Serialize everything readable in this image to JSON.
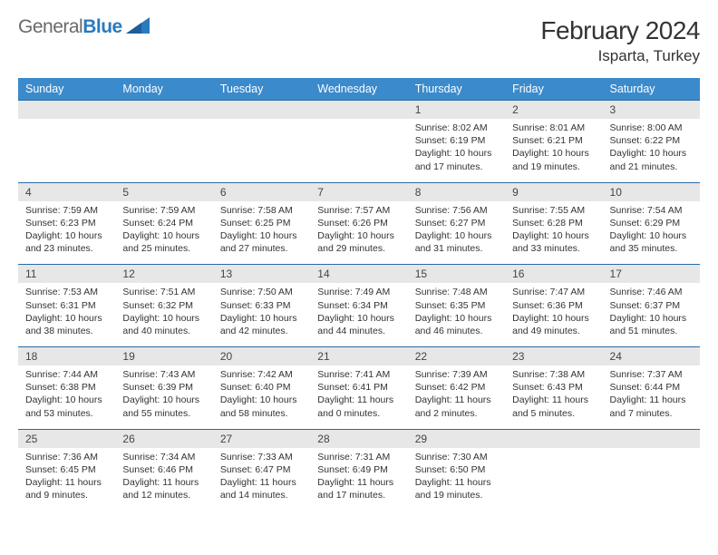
{
  "brand": {
    "part1": "General",
    "part2": "Blue"
  },
  "title": "February 2024",
  "location": "Isparta, Turkey",
  "colors": {
    "header_bg": "#3b8acb",
    "header_text": "#ffffff",
    "daynum_bg": "#e7e7e7",
    "row_border": "#2a6aa3",
    "body_text": "#333333",
    "logo_gray": "#6a6a6a",
    "logo_blue": "#2a7ac0",
    "page_bg": "#ffffff"
  },
  "typography": {
    "month_title_fontsize": 28,
    "location_fontsize": 17,
    "weekday_fontsize": 12.5,
    "daynum_fontsize": 12,
    "body_fontsize": 10.5
  },
  "weekdays": [
    "Sunday",
    "Monday",
    "Tuesday",
    "Wednesday",
    "Thursday",
    "Friday",
    "Saturday"
  ],
  "weeks": [
    [
      null,
      null,
      null,
      null,
      {
        "num": "1",
        "sunrise": "Sunrise: 8:02 AM",
        "sunset": "Sunset: 6:19 PM",
        "daylight": "Daylight: 10 hours and 17 minutes."
      },
      {
        "num": "2",
        "sunrise": "Sunrise: 8:01 AM",
        "sunset": "Sunset: 6:21 PM",
        "daylight": "Daylight: 10 hours and 19 minutes."
      },
      {
        "num": "3",
        "sunrise": "Sunrise: 8:00 AM",
        "sunset": "Sunset: 6:22 PM",
        "daylight": "Daylight: 10 hours and 21 minutes."
      }
    ],
    [
      {
        "num": "4",
        "sunrise": "Sunrise: 7:59 AM",
        "sunset": "Sunset: 6:23 PM",
        "daylight": "Daylight: 10 hours and 23 minutes."
      },
      {
        "num": "5",
        "sunrise": "Sunrise: 7:59 AM",
        "sunset": "Sunset: 6:24 PM",
        "daylight": "Daylight: 10 hours and 25 minutes."
      },
      {
        "num": "6",
        "sunrise": "Sunrise: 7:58 AM",
        "sunset": "Sunset: 6:25 PM",
        "daylight": "Daylight: 10 hours and 27 minutes."
      },
      {
        "num": "7",
        "sunrise": "Sunrise: 7:57 AM",
        "sunset": "Sunset: 6:26 PM",
        "daylight": "Daylight: 10 hours and 29 minutes."
      },
      {
        "num": "8",
        "sunrise": "Sunrise: 7:56 AM",
        "sunset": "Sunset: 6:27 PM",
        "daylight": "Daylight: 10 hours and 31 minutes."
      },
      {
        "num": "9",
        "sunrise": "Sunrise: 7:55 AM",
        "sunset": "Sunset: 6:28 PM",
        "daylight": "Daylight: 10 hours and 33 minutes."
      },
      {
        "num": "10",
        "sunrise": "Sunrise: 7:54 AM",
        "sunset": "Sunset: 6:29 PM",
        "daylight": "Daylight: 10 hours and 35 minutes."
      }
    ],
    [
      {
        "num": "11",
        "sunrise": "Sunrise: 7:53 AM",
        "sunset": "Sunset: 6:31 PM",
        "daylight": "Daylight: 10 hours and 38 minutes."
      },
      {
        "num": "12",
        "sunrise": "Sunrise: 7:51 AM",
        "sunset": "Sunset: 6:32 PM",
        "daylight": "Daylight: 10 hours and 40 minutes."
      },
      {
        "num": "13",
        "sunrise": "Sunrise: 7:50 AM",
        "sunset": "Sunset: 6:33 PM",
        "daylight": "Daylight: 10 hours and 42 minutes."
      },
      {
        "num": "14",
        "sunrise": "Sunrise: 7:49 AM",
        "sunset": "Sunset: 6:34 PM",
        "daylight": "Daylight: 10 hours and 44 minutes."
      },
      {
        "num": "15",
        "sunrise": "Sunrise: 7:48 AM",
        "sunset": "Sunset: 6:35 PM",
        "daylight": "Daylight: 10 hours and 46 minutes."
      },
      {
        "num": "16",
        "sunrise": "Sunrise: 7:47 AM",
        "sunset": "Sunset: 6:36 PM",
        "daylight": "Daylight: 10 hours and 49 minutes."
      },
      {
        "num": "17",
        "sunrise": "Sunrise: 7:46 AM",
        "sunset": "Sunset: 6:37 PM",
        "daylight": "Daylight: 10 hours and 51 minutes."
      }
    ],
    [
      {
        "num": "18",
        "sunrise": "Sunrise: 7:44 AM",
        "sunset": "Sunset: 6:38 PM",
        "daylight": "Daylight: 10 hours and 53 minutes."
      },
      {
        "num": "19",
        "sunrise": "Sunrise: 7:43 AM",
        "sunset": "Sunset: 6:39 PM",
        "daylight": "Daylight: 10 hours and 55 minutes."
      },
      {
        "num": "20",
        "sunrise": "Sunrise: 7:42 AM",
        "sunset": "Sunset: 6:40 PM",
        "daylight": "Daylight: 10 hours and 58 minutes."
      },
      {
        "num": "21",
        "sunrise": "Sunrise: 7:41 AM",
        "sunset": "Sunset: 6:41 PM",
        "daylight": "Daylight: 11 hours and 0 minutes."
      },
      {
        "num": "22",
        "sunrise": "Sunrise: 7:39 AM",
        "sunset": "Sunset: 6:42 PM",
        "daylight": "Daylight: 11 hours and 2 minutes."
      },
      {
        "num": "23",
        "sunrise": "Sunrise: 7:38 AM",
        "sunset": "Sunset: 6:43 PM",
        "daylight": "Daylight: 11 hours and 5 minutes."
      },
      {
        "num": "24",
        "sunrise": "Sunrise: 7:37 AM",
        "sunset": "Sunset: 6:44 PM",
        "daylight": "Daylight: 11 hours and 7 minutes."
      }
    ],
    [
      {
        "num": "25",
        "sunrise": "Sunrise: 7:36 AM",
        "sunset": "Sunset: 6:45 PM",
        "daylight": "Daylight: 11 hours and 9 minutes."
      },
      {
        "num": "26",
        "sunrise": "Sunrise: 7:34 AM",
        "sunset": "Sunset: 6:46 PM",
        "daylight": "Daylight: 11 hours and 12 minutes."
      },
      {
        "num": "27",
        "sunrise": "Sunrise: 7:33 AM",
        "sunset": "Sunset: 6:47 PM",
        "daylight": "Daylight: 11 hours and 14 minutes."
      },
      {
        "num": "28",
        "sunrise": "Sunrise: 7:31 AM",
        "sunset": "Sunset: 6:49 PM",
        "daylight": "Daylight: 11 hours and 17 minutes."
      },
      {
        "num": "29",
        "sunrise": "Sunrise: 7:30 AM",
        "sunset": "Sunset: 6:50 PM",
        "daylight": "Daylight: 11 hours and 19 minutes."
      },
      null,
      null
    ]
  ]
}
